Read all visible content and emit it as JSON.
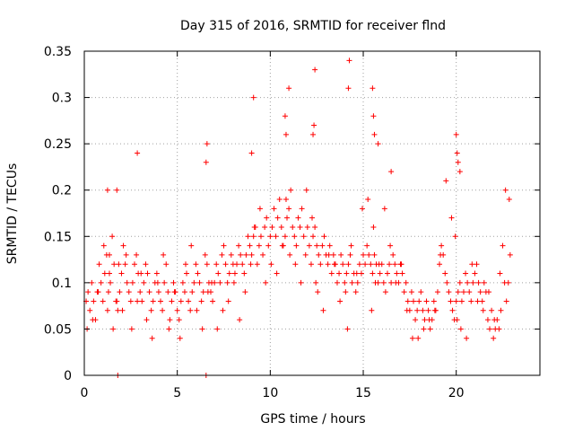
{
  "chart_data": {
    "type": "scatter",
    "title": "Day 315 of 2016, SRMTID for receiver flnd",
    "xlabel": "GPS time / hours",
    "ylabel": "SRMTID / TECUs",
    "xlim": [
      0,
      24.5
    ],
    "ylim": [
      0,
      0.35
    ],
    "xticks": [
      0,
      5,
      10,
      15,
      20
    ],
    "xtick_labels": [
      "0",
      "5",
      "10",
      "15",
      "20"
    ],
    "yticks": [
      0,
      0.05,
      0.1,
      0.15,
      0.2,
      0.25,
      0.3,
      0.35
    ],
    "ytick_labels": [
      "0",
      "0.05",
      "0.1",
      "0.15",
      "0.2",
      "0.25",
      "0.3",
      "0.35"
    ],
    "grid": true,
    "marker": "+",
    "marker_color": "#ff0000",
    "series": [
      {
        "name": "SRMTID",
        "x": [
          0.1,
          0.2,
          0.3,
          0.4,
          0.5,
          0.6,
          0.7,
          0.8,
          0.9,
          1.0,
          1.1,
          1.2,
          1.3,
          1.4,
          1.5,
          1.6,
          1.7,
          1.8,
          1.9,
          2.0,
          2.1,
          2.2,
          2.3,
          2.4,
          2.5,
          2.6,
          2.7,
          2.8,
          2.9,
          3.0,
          3.1,
          3.2,
          3.3,
          3.4,
          3.5,
          3.6,
          3.7,
          3.8,
          3.9,
          4.0,
          4.1,
          4.2,
          4.3,
          4.4,
          4.5,
          4.6,
          4.7,
          4.8,
          4.9,
          5.0,
          5.1,
          5.2,
          5.3,
          5.4,
          5.5,
          5.6,
          5.7,
          5.8,
          5.9,
          6.0,
          6.1,
          6.2,
          6.3,
          6.4,
          6.5,
          6.6,
          6.7,
          6.8,
          6.9,
          7.0,
          7.1,
          7.2,
          7.3,
          7.4,
          7.5,
          7.6,
          7.7,
          7.8,
          7.9,
          8.0,
          8.1,
          8.2,
          8.3,
          8.4,
          8.5,
          8.6,
          8.7,
          8.8,
          8.9,
          9.0,
          9.1,
          9.2,
          9.3,
          9.4,
          9.5,
          9.6,
          9.7,
          9.8,
          9.9,
          10.0,
          10.1,
          10.2,
          10.3,
          10.4,
          10.5,
          10.6,
          10.7,
          10.8,
          10.9,
          11.0,
          11.1,
          11.2,
          11.3,
          11.4,
          11.5,
          11.6,
          11.7,
          11.8,
          11.9,
          12.0,
          12.1,
          12.2,
          12.3,
          12.4,
          12.5,
          12.6,
          12.7,
          12.8,
          12.9,
          13.0,
          13.1,
          13.2,
          13.3,
          13.4,
          13.5,
          13.6,
          13.7,
          13.8,
          13.9,
          14.0,
          14.1,
          14.2,
          14.3,
          14.4,
          14.5,
          14.6,
          14.7,
          14.8,
          14.9,
          15.0,
          15.1,
          15.2,
          15.3,
          15.4,
          15.5,
          15.6,
          15.7,
          15.8,
          15.9,
          16.0,
          16.1,
          16.2,
          16.3,
          16.4,
          16.5,
          16.6,
          16.7,
          16.8,
          16.9,
          17.0,
          17.1,
          17.2,
          17.3,
          17.4,
          17.5,
          17.6,
          17.7,
          17.8,
          17.9,
          18.0,
          18.1,
          18.2,
          18.3,
          18.4,
          18.5,
          18.6,
          18.7,
          18.8,
          18.9,
          19.0,
          19.1,
          19.2,
          19.3,
          19.4,
          19.5,
          19.6,
          19.7,
          19.8,
          19.9,
          20.0,
          20.1,
          20.2,
          20.3,
          20.4,
          20.5,
          20.6,
          20.7,
          20.8,
          20.9,
          21.0,
          21.1,
          21.2,
          21.3,
          21.4,
          21.5,
          21.6,
          21.7,
          21.8,
          21.9,
          22.0,
          22.1,
          22.2,
          22.3,
          22.4,
          22.5,
          22.6,
          22.7,
          22.8,
          22.9,
          0.15,
          0.45,
          0.75,
          1.05,
          1.25,
          1.35,
          1.55,
          1.75,
          1.85,
          2.05,
          2.25,
          2.55,
          2.85,
          3.05,
          3.35,
          3.65,
          3.95,
          4.25,
          4.55,
          4.85,
          5.15,
          5.45,
          5.75,
          6.05,
          6.35,
          6.65,
          6.85,
          7.15,
          7.45,
          7.75,
          8.05,
          8.35,
          8.65,
          8.95,
          9.15,
          9.45,
          9.75,
          10.05,
          10.35,
          10.65,
          10.85,
          11.05,
          11.35,
          11.65,
          11.95,
          12.25,
          12.45,
          12.55,
          12.85,
          13.15,
          13.45,
          13.75,
          14.05,
          14.15,
          14.35,
          14.65,
          14.95,
          15.25,
          15.45,
          15.55,
          15.65,
          15.85,
          16.15,
          16.45,
          16.75,
          17.05,
          17.35,
          17.65,
          17.95,
          18.25,
          18.55,
          18.85,
          19.15,
          19.45,
          19.75,
          19.95,
          20.05,
          20.25,
          20.55,
          20.85,
          21.15,
          21.45,
          21.75,
          22.05,
          22.35,
          22.65,
          22.85,
          1.25,
          1.35,
          1.75,
          2.85,
          6.55,
          6.6,
          9.0,
          9.1,
          10.8,
          10.85,
          11.0,
          12.3,
          12.35,
          12.4,
          14.2,
          14.25,
          15.5,
          15.55,
          15.6,
          15.8,
          16.5,
          20.0,
          20.05,
          20.1,
          20.2,
          1.8,
          6.55
        ],
        "y": [
          0.08,
          0.09,
          0.07,
          0.1,
          0.08,
          0.06,
          0.09,
          0.12,
          0.1,
          0.08,
          0.11,
          0.13,
          0.09,
          0.1,
          0.15,
          0.12,
          0.08,
          0.07,
          0.09,
          0.11,
          0.14,
          0.12,
          0.1,
          0.09,
          0.08,
          0.1,
          0.12,
          0.13,
          0.11,
          0.09,
          0.08,
          0.1,
          0.12,
          0.11,
          0.09,
          0.07,
          0.08,
          0.1,
          0.11,
          0.09,
          0.08,
          0.07,
          0.1,
          0.12,
          0.09,
          0.06,
          0.08,
          0.1,
          0.09,
          0.07,
          0.06,
          0.08,
          0.1,
          0.09,
          0.11,
          0.08,
          0.07,
          0.09,
          0.1,
          0.12,
          0.11,
          0.1,
          0.08,
          0.09,
          0.13,
          0.12,
          0.1,
          0.09,
          0.08,
          0.1,
          0.12,
          0.11,
          0.1,
          0.13,
          0.14,
          0.12,
          0.1,
          0.11,
          0.13,
          0.12,
          0.11,
          0.12,
          0.14,
          0.13,
          0.12,
          0.11,
          0.13,
          0.15,
          0.14,
          0.13,
          0.15,
          0.16,
          0.12,
          0.14,
          0.15,
          0.13,
          0.16,
          0.17,
          0.14,
          0.15,
          0.16,
          0.18,
          0.15,
          0.17,
          0.19,
          0.16,
          0.14,
          0.15,
          0.17,
          0.18,
          0.2,
          0.16,
          0.15,
          0.14,
          0.17,
          0.16,
          0.18,
          0.15,
          0.13,
          0.16,
          0.14,
          0.12,
          0.15,
          0.16,
          0.14,
          0.13,
          0.12,
          0.14,
          0.15,
          0.13,
          0.12,
          0.14,
          0.11,
          0.13,
          0.12,
          0.1,
          0.11,
          0.13,
          0.12,
          0.1,
          0.11,
          0.12,
          0.13,
          0.1,
          0.11,
          0.09,
          0.1,
          0.12,
          0.11,
          0.13,
          0.12,
          0.14,
          0.13,
          0.12,
          0.11,
          0.13,
          0.12,
          0.1,
          0.11,
          0.12,
          0.1,
          0.09,
          0.11,
          0.12,
          0.1,
          0.13,
          0.12,
          0.11,
          0.1,
          0.12,
          0.11,
          0.09,
          0.1,
          0.08,
          0.07,
          0.09,
          0.08,
          0.06,
          0.07,
          0.08,
          0.09,
          0.07,
          0.06,
          0.08,
          0.07,
          0.05,
          0.06,
          0.08,
          0.07,
          0.09,
          0.12,
          0.14,
          0.13,
          0.11,
          0.1,
          0.09,
          0.08,
          0.07,
          0.06,
          0.08,
          0.09,
          0.1,
          0.08,
          0.09,
          0.11,
          0.1,
          0.09,
          0.08,
          0.1,
          0.11,
          0.12,
          0.1,
          0.09,
          0.08,
          0.1,
          0.09,
          0.06,
          0.05,
          0.07,
          0.04,
          0.05,
          0.06,
          0.05,
          0.07,
          0.14,
          0.1,
          0.08,
          0.1,
          0.13,
          0.05,
          0.06,
          0.09,
          0.14,
          0.07,
          0.11,
          0.05,
          0.08,
          0.12,
          0.07,
          0.13,
          0.05,
          0.08,
          0.11,
          0.06,
          0.04,
          0.1,
          0.13,
          0.05,
          0.09,
          0.04,
          0.12,
          0.14,
          0.07,
          0.05,
          0.09,
          0.1,
          0.05,
          0.07,
          0.08,
          0.1,
          0.06,
          0.09,
          0.12,
          0.16,
          0.18,
          0.1,
          0.12,
          0.11,
          0.14,
          0.19,
          0.13,
          0.12,
          0.1,
          0.2,
          0.17,
          0.1,
          0.09,
          0.07,
          0.13,
          0.12,
          0.08,
          0.09,
          0.05,
          0.14,
          0.11,
          0.18,
          0.19,
          0.07,
          0.16,
          0.1,
          0.12,
          0.18,
          0.14,
          0.1,
          0.12,
          0.07,
          0.04,
          0.04,
          0.05,
          0.06,
          0.07,
          0.13,
          0.21,
          0.17,
          0.15,
          0.06,
          0.05,
          0.04,
          0.12,
          0.08,
          0.07,
          0.09,
          0.06,
          0.11,
          0.2,
          0.19,
          0.2,
          0.13,
          0.2,
          0.24,
          0.23,
          0.25,
          0.24,
          0.3,
          0.28,
          0.26,
          0.31,
          0.26,
          0.27,
          0.33,
          0.31,
          0.34,
          0.31,
          0.28,
          0.26,
          0.25,
          0.22,
          0.26,
          0.24,
          0.23,
          0.22,
          0.0,
          0.0
        ]
      }
    ]
  }
}
